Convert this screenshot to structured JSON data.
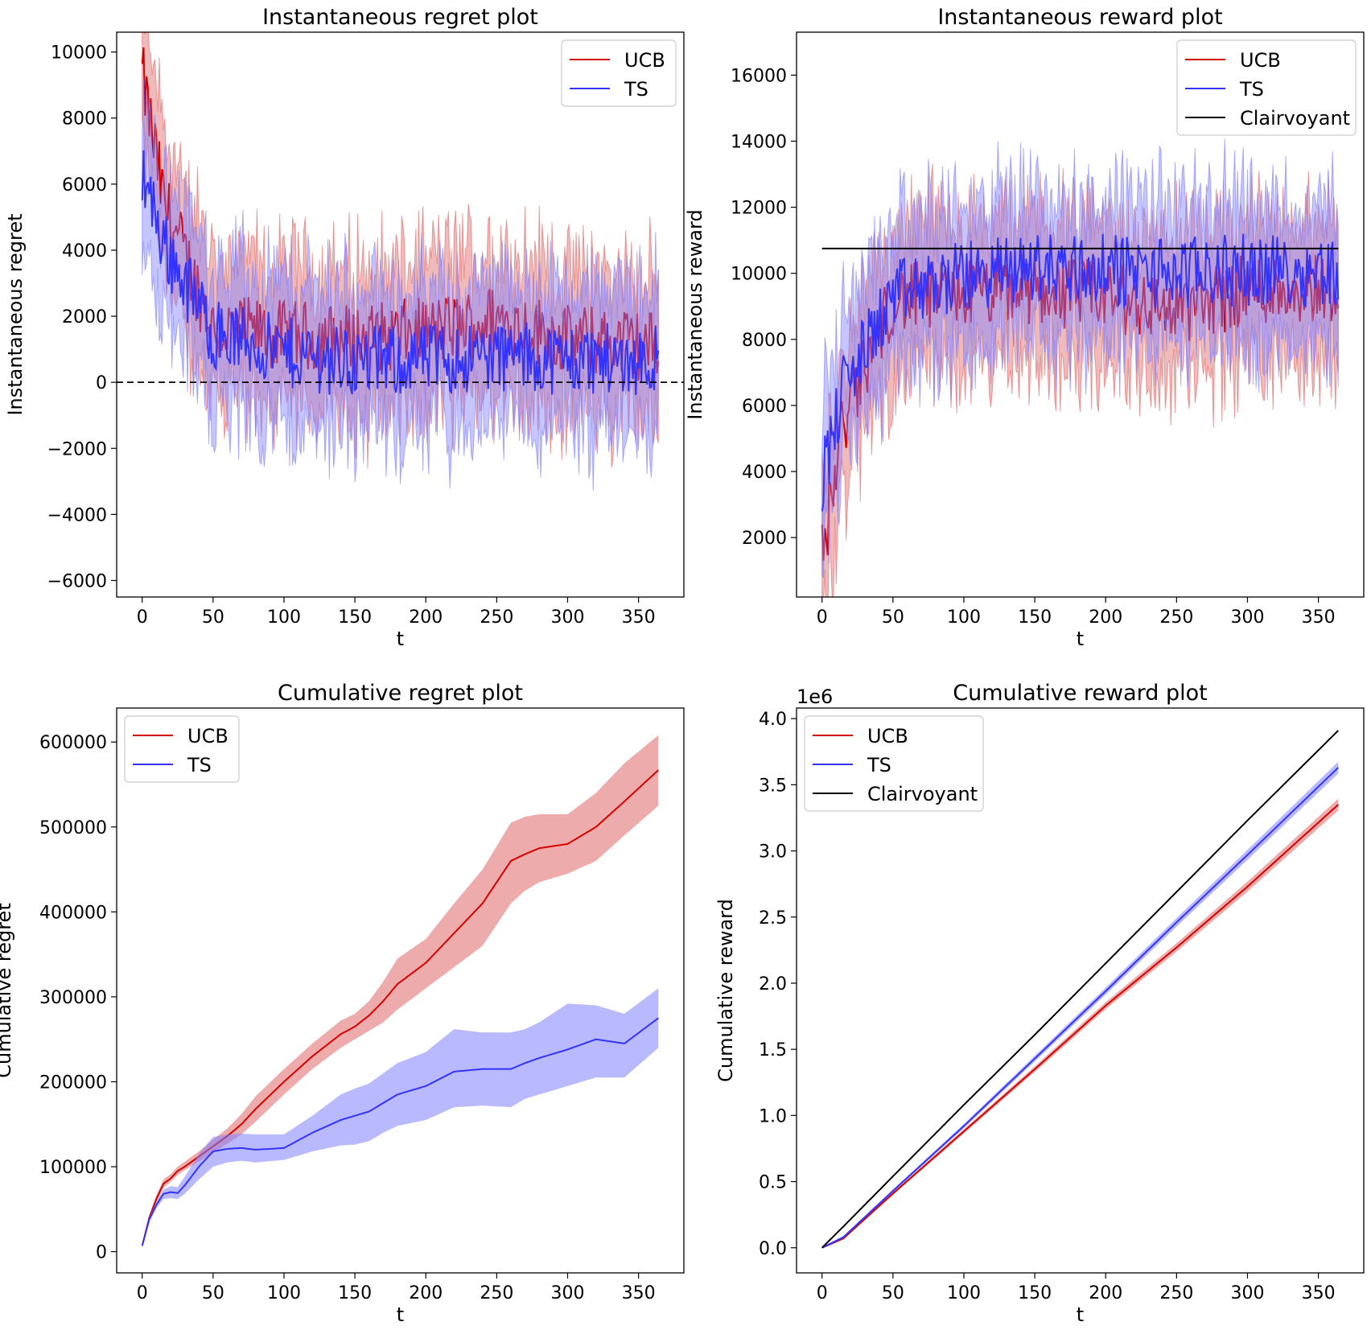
{
  "colors": {
    "ucb": "#d40000",
    "ts": "#3333ff",
    "clairvoyant": "#000000",
    "ucb_band": "#e06666",
    "ts_band": "#7f7fff"
  },
  "chart_data": [
    {
      "type": "line",
      "title": "Instantaneous regret plot",
      "xlabel": "t",
      "ylabel": "Instantaneous regret",
      "xlim": [
        -18,
        382
      ],
      "ylim": [
        -6500,
        10600
      ],
      "xticks": [
        0,
        50,
        100,
        150,
        200,
        250,
        300,
        350
      ],
      "yticks": [
        -6000,
        -4000,
        -2000,
        0,
        2000,
        4000,
        6000,
        8000,
        10000
      ],
      "tick_labels_y": [
        "−6000",
        "−4000",
        "−2000",
        "0",
        "2000",
        "4000",
        "6000",
        "8000",
        "10000"
      ],
      "legend": {
        "position": "top-right",
        "entries": [
          "UCB",
          "TS"
        ]
      },
      "reference_line": {
        "y": 0,
        "style": "dashed"
      },
      "x": [
        0,
        15,
        50,
        100,
        150,
        200,
        250,
        300,
        364
      ],
      "series": [
        {
          "name": "UCB",
          "color": "ucb",
          "values": [
            9300,
            5500,
            1600,
            1400,
            1300,
            1500,
            1900,
            1300,
            1100
          ],
          "band": 2300
        },
        {
          "name": "TS",
          "color": "ts",
          "values": [
            6500,
            4200,
            1500,
            900,
            600,
            700,
            800,
            700,
            700
          ],
          "band": 2300
        }
      ]
    },
    {
      "type": "line",
      "title": "Instantaneous reward plot",
      "xlabel": "t",
      "ylabel": "Instantaneous reward",
      "xlim": [
        -18,
        382
      ],
      "ylim": [
        200,
        17300
      ],
      "xticks": [
        0,
        50,
        100,
        150,
        200,
        250,
        300,
        350
      ],
      "yticks": [
        2000,
        4000,
        6000,
        8000,
        10000,
        12000,
        14000,
        16000
      ],
      "tick_labels_y": [
        "2000",
        "4000",
        "6000",
        "8000",
        "10000",
        "12000",
        "14000",
        "16000"
      ],
      "legend": {
        "position": "top-right",
        "entries": [
          "UCB",
          "TS",
          "Clairvoyant"
        ]
      },
      "x": [
        0,
        15,
        50,
        100,
        150,
        200,
        250,
        300,
        364
      ],
      "series": [
        {
          "name": "UCB",
          "color": "ucb",
          "values": [
            1400,
            5500,
            9200,
            9400,
            9500,
            9300,
            8900,
            9500,
            9600
          ],
          "band": 2300
        },
        {
          "name": "TS",
          "color": "ts",
          "values": [
            3800,
            6500,
            9300,
            9900,
            10200,
            10100,
            10000,
            10100,
            10100
          ],
          "band": 2300
        },
        {
          "name": "Clairvoyant",
          "color": "clairvoyant",
          "values": [
            10750,
            10750,
            10750,
            10750,
            10750,
            10750,
            10750,
            10750,
            10750
          ]
        }
      ]
    },
    {
      "type": "line",
      "title": "Cumulative regret plot",
      "xlabel": "t",
      "ylabel": "Cumulative regret",
      "xlim": [
        -18,
        382
      ],
      "ylim": [
        -25000,
        640000
      ],
      "xticks": [
        0,
        50,
        100,
        150,
        200,
        250,
        300,
        350
      ],
      "yticks": [
        0,
        100000,
        200000,
        300000,
        400000,
        500000,
        600000
      ],
      "tick_labels_y": [
        "0",
        "100000",
        "200000",
        "300000",
        "400000",
        "500000",
        "600000"
      ],
      "legend": {
        "position": "top-left",
        "entries": [
          "UCB",
          "TS"
        ]
      },
      "x": [
        0,
        5,
        10,
        15,
        20,
        25,
        30,
        40,
        50,
        60,
        70,
        80,
        100,
        120,
        140,
        150,
        160,
        170,
        180,
        200,
        220,
        240,
        260,
        270,
        280,
        300,
        320,
        340,
        364
      ],
      "series": [
        {
          "name": "UCB",
          "color": "ucb",
          "values": [
            7000,
            40000,
            62000,
            80000,
            86000,
            95000,
            100000,
            112000,
            124000,
            136000,
            150000,
            168000,
            200000,
            230000,
            256000,
            265000,
            278000,
            295000,
            315000,
            340000,
            375000,
            410000,
            460000,
            468000,
            475000,
            480000,
            500000,
            530000,
            567000
          ],
          "lower": [
            6000,
            37000,
            58000,
            75000,
            82000,
            90000,
            96000,
            106000,
            116000,
            127000,
            138000,
            153000,
            185000,
            215000,
            240000,
            250000,
            260000,
            270000,
            285000,
            310000,
            335000,
            360000,
            410000,
            425000,
            435000,
            445000,
            460000,
            490000,
            525000
          ],
          "upper": [
            8000,
            43000,
            66000,
            85000,
            91000,
            100000,
            106000,
            118000,
            132000,
            145000,
            162000,
            183000,
            215000,
            245000,
            272000,
            280000,
            295000,
            318000,
            345000,
            368000,
            410000,
            450000,
            505000,
            512000,
            515000,
            515000,
            540000,
            575000,
            608000
          ]
        },
        {
          "name": "TS",
          "color": "ts",
          "values": [
            7000,
            38000,
            55000,
            68000,
            70000,
            69000,
            78000,
            100000,
            118000,
            121000,
            122000,
            120000,
            122000,
            140000,
            155000,
            160000,
            165000,
            175000,
            185000,
            195000,
            212000,
            215000,
            215000,
            222000,
            228000,
            238000,
            250000,
            245000,
            275000
          ],
          "lower": [
            6000,
            35000,
            51000,
            62000,
            63000,
            62000,
            68000,
            85000,
            100000,
            105000,
            107000,
            105000,
            108000,
            118000,
            125000,
            126000,
            130000,
            140000,
            148000,
            155000,
            170000,
            172000,
            170000,
            180000,
            185000,
            195000,
            205000,
            205000,
            240000
          ],
          "upper": [
            8000,
            41000,
            59000,
            73000,
            77000,
            76000,
            88000,
            115000,
            135000,
            138000,
            139000,
            138000,
            138000,
            160000,
            185000,
            192000,
            198000,
            210000,
            222000,
            235000,
            262000,
            258000,
            258000,
            262000,
            270000,
            292000,
            290000,
            280000,
            310000
          ]
        }
      ]
    },
    {
      "type": "line",
      "title": "Cumulative reward plot",
      "xlabel": "t",
      "ylabel": "Cumulative reward",
      "offset_text": "1e6",
      "xlim": [
        -18,
        382
      ],
      "ylim": [
        -0.19,
        4.08
      ],
      "xticks": [
        0,
        50,
        100,
        150,
        200,
        250,
        300,
        350
      ],
      "yticks": [
        0.0,
        0.5,
        1.0,
        1.5,
        2.0,
        2.5,
        3.0,
        3.5,
        4.0
      ],
      "tick_labels_y": [
        "0.0",
        "0.5",
        "1.0",
        "1.5",
        "2.0",
        "2.5",
        "3.0",
        "3.5",
        "4.0"
      ],
      "legend": {
        "position": "top-left",
        "entries": [
          "UCB",
          "TS",
          "Clairvoyant"
        ]
      },
      "x": [
        0,
        15,
        50,
        100,
        150,
        200,
        250,
        300,
        364
      ],
      "series": [
        {
          "name": "UCB",
          "color": "ucb",
          "values": [
            0.0,
            0.07,
            0.41,
            0.88,
            1.35,
            1.83,
            2.27,
            2.73,
            3.35
          ],
          "band": 0.04
        },
        {
          "name": "TS",
          "color": "ts",
          "values": [
            0.0,
            0.08,
            0.43,
            0.92,
            1.43,
            1.94,
            2.46,
            2.97,
            3.63
          ],
          "band": 0.04
        },
        {
          "name": "Clairvoyant",
          "color": "clairvoyant",
          "values": [
            0.0,
            0.16,
            0.54,
            1.08,
            1.61,
            2.15,
            2.69,
            3.23,
            3.91
          ]
        }
      ]
    }
  ]
}
